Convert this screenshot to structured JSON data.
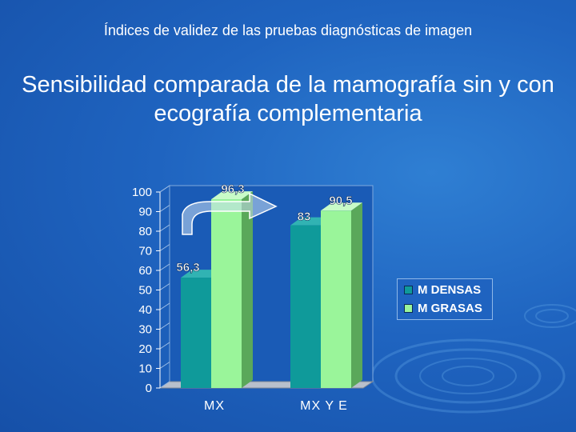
{
  "slide": {
    "subtitle": "Índices de validez de las pruebas diagnósticas de imagen",
    "title": "Sensibilidad comparada de la mamografía sin y con ecografía complementaria"
  },
  "colors": {
    "background": "#1f64c0",
    "densas": "#0f9a9a",
    "grasas": "#9af59a",
    "arrow": "#c9dcf2"
  },
  "chart_data": {
    "type": "bar",
    "categories": [
      "MX",
      "MX Y E"
    ],
    "series": [
      {
        "name": "M DENSAS",
        "values": [
          56.3,
          83
        ],
        "labels": [
          "56,3",
          "83"
        ]
      },
      {
        "name": "M GRASAS",
        "values": [
          96.3,
          90.5
        ],
        "labels": [
          "96,3",
          "90,5"
        ]
      }
    ],
    "yticks": [
      "100",
      "90",
      "80",
      "70",
      "60",
      "50",
      "40",
      "30",
      "20",
      "10",
      "0"
    ],
    "ylim": [
      0,
      100
    ],
    "legend_position": "right",
    "style": "3d"
  }
}
